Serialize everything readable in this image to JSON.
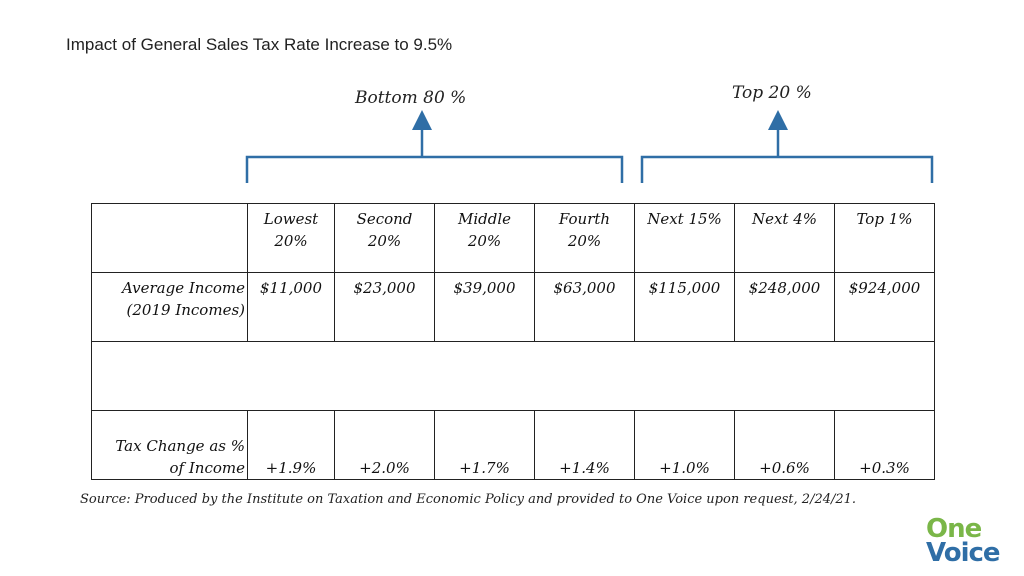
{
  "title": "Impact of General Sales Tax Rate Increase to 9.5%",
  "groups": {
    "bottom_label": "Bottom 80 %",
    "top_label": "Top 20 %"
  },
  "table": {
    "columns": [
      "Lowest 20%",
      "Second 20%",
      "Middle 20%",
      "Fourth 20%",
      "Next 15%",
      "Next 4%",
      "Top 1%"
    ],
    "columns_line1": [
      "Lowest",
      "Second",
      "Middle",
      "Fourth",
      "Next 15%",
      "Next 4%",
      "Top 1%"
    ],
    "columns_line2": [
      "20%",
      "20%",
      "20%",
      "20%",
      "",
      "",
      ""
    ],
    "income_label_line1": "Average Income",
    "income_label_line2": "(2019 Incomes)",
    "income": [
      "$11,000",
      "$23,000",
      "$39,000",
      "$63,000",
      "$115,000",
      "$248,000",
      "$924,000"
    ],
    "tax_label_line1": "Tax Change as %",
    "tax_label_line2": "of Income",
    "tax_change": [
      "+1.9%",
      "+2.0%",
      "+1.7%",
      "+1.4%",
      "+1.0%",
      "+0.6%",
      "+0.3%"
    ]
  },
  "source": "Source: Produced by the Institute on Taxation and Economic Policy and provided to One Voice upon request, 2/24/21.",
  "logo": {
    "line1": "One",
    "line2": "Voice",
    "color1": "#7ab648",
    "color2": "#2f6ea6"
  },
  "colors": {
    "bracket": "#2f6ea6"
  }
}
